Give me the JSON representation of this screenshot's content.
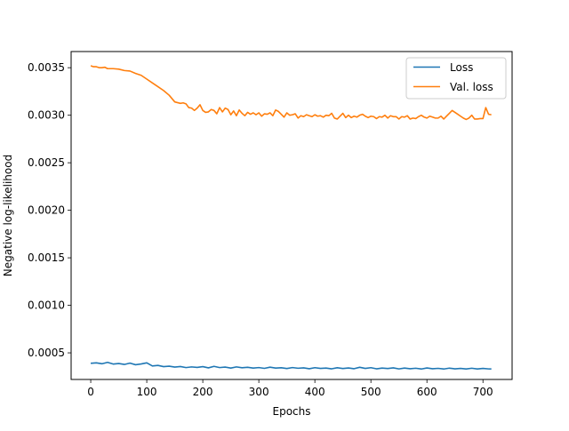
{
  "chart_data": {
    "type": "line",
    "title": "",
    "xlabel": "Epochs",
    "ylabel": "Negative log-likelihood",
    "xlim": [
      -35,
      752
    ],
    "ylim": [
      0.00022,
      0.00367
    ],
    "xticks": [
      0,
      100,
      200,
      300,
      400,
      500,
      600,
      700
    ],
    "xtick_labels": [
      "0",
      "100",
      "200",
      "300",
      "400",
      "500",
      "600",
      "700"
    ],
    "yticks": [
      0.0005,
      0.001,
      0.0015,
      0.002,
      0.0025,
      0.003,
      0.0035
    ],
    "ytick_labels": [
      "0.0005",
      "0.0010",
      "0.0015",
      "0.0020",
      "0.0025",
      "0.0030",
      "0.0035"
    ],
    "grid": false,
    "legend_position": "top-right",
    "series": [
      {
        "name": "Loss",
        "color": "#1f77b4",
        "x": [
          0,
          10,
          20,
          30,
          40,
          50,
          60,
          70,
          80,
          90,
          100,
          110,
          120,
          130,
          140,
          150,
          160,
          170,
          180,
          190,
          200,
          210,
          220,
          230,
          240,
          250,
          260,
          270,
          280,
          290,
          300,
          310,
          320,
          330,
          340,
          350,
          360,
          370,
          380,
          390,
          400,
          410,
          420,
          430,
          440,
          450,
          460,
          470,
          480,
          490,
          500,
          510,
          520,
          530,
          540,
          550,
          560,
          570,
          580,
          590,
          600,
          610,
          620,
          630,
          640,
          650,
          660,
          670,
          680,
          690,
          700,
          710,
          715
        ],
        "values": [
          0.00039,
          0.000395,
          0.000385,
          0.0004,
          0.000382,
          0.000388,
          0.000378,
          0.000392,
          0.000375,
          0.000383,
          0.000395,
          0.000362,
          0.000368,
          0.000355,
          0.00036,
          0.00035,
          0.000356,
          0.000345,
          0.000352,
          0.000347,
          0.000355,
          0.000342,
          0.000358,
          0.000345,
          0.00035,
          0.00034,
          0.000352,
          0.000343,
          0.000348,
          0.00034,
          0.000345,
          0.000337,
          0.000349,
          0.00034,
          0.000343,
          0.000335,
          0.000345,
          0.000338,
          0.000342,
          0.000333,
          0.000344,
          0.000336,
          0.00034,
          0.000332,
          0.000343,
          0.000335,
          0.000341,
          0.000333,
          0.000348,
          0.000336,
          0.000344,
          0.000332,
          0.00034,
          0.000335,
          0.000342,
          0.000331,
          0.00034,
          0.000333,
          0.000338,
          0.00033,
          0.000341,
          0.000333,
          0.000337,
          0.00033,
          0.000339,
          0.000332,
          0.000336,
          0.00033,
          0.000338,
          0.00033,
          0.000336,
          0.000331,
          0.00033
        ]
      },
      {
        "name": "Val. loss",
        "color": "#ff7f0e",
        "x": [
          0,
          5,
          10,
          15,
          20,
          25,
          30,
          40,
          50,
          60,
          70,
          80,
          90,
          100,
          110,
          120,
          130,
          140,
          150,
          160,
          165,
          170,
          175,
          180,
          185,
          190,
          195,
          200,
          205,
          210,
          215,
          220,
          225,
          230,
          235,
          240,
          245,
          250,
          255,
          260,
          265,
          270,
          275,
          280,
          285,
          290,
          295,
          300,
          305,
          310,
          315,
          320,
          325,
          330,
          335,
          340,
          345,
          350,
          355,
          360,
          365,
          370,
          375,
          380,
          385,
          390,
          395,
          400,
          405,
          410,
          415,
          420,
          425,
          430,
          435,
          440,
          445,
          450,
          455,
          460,
          465,
          470,
          475,
          480,
          485,
          490,
          495,
          500,
          505,
          510,
          515,
          520,
          525,
          530,
          535,
          540,
          545,
          550,
          555,
          560,
          565,
          570,
          575,
          580,
          585,
          590,
          595,
          600,
          605,
          610,
          615,
          620,
          625,
          630,
          635,
          640,
          645,
          650,
          655,
          660,
          665,
          670,
          675,
          680,
          685,
          690,
          695,
          700,
          705,
          710,
          715
        ],
        "values": [
          0.00352,
          0.00351,
          0.00351,
          0.0035,
          0.0035,
          0.003505,
          0.00349,
          0.00349,
          0.003485,
          0.00347,
          0.003465,
          0.00344,
          0.00342,
          0.00338,
          0.00334,
          0.0033,
          0.00326,
          0.00321,
          0.00314,
          0.003125,
          0.00313,
          0.00312,
          0.00308,
          0.003075,
          0.00305,
          0.003075,
          0.00311,
          0.00305,
          0.00303,
          0.003035,
          0.00306,
          0.00305,
          0.003015,
          0.00308,
          0.003035,
          0.003075,
          0.00306,
          0.003005,
          0.003045,
          0.002995,
          0.003055,
          0.00302,
          0.002995,
          0.00303,
          0.00301,
          0.003025,
          0.003005,
          0.003025,
          0.00299,
          0.003015,
          0.00301,
          0.003025,
          0.002995,
          0.003055,
          0.00304,
          0.00301,
          0.00298,
          0.003025,
          0.003,
          0.003005,
          0.003015,
          0.00297,
          0.002995,
          0.002985,
          0.003005,
          0.002995,
          0.002985,
          0.003005,
          0.00299,
          0.002995,
          0.00298,
          0.003,
          0.002995,
          0.00302,
          0.00297,
          0.00296,
          0.00299,
          0.00302,
          0.002975,
          0.003,
          0.002975,
          0.00299,
          0.00298,
          0.003,
          0.00301,
          0.00299,
          0.002975,
          0.00299,
          0.002985,
          0.002965,
          0.002985,
          0.00298,
          0.003,
          0.00297,
          0.002995,
          0.002985,
          0.002985,
          0.00296,
          0.002985,
          0.00298,
          0.002995,
          0.00296,
          0.00297,
          0.002965,
          0.002985,
          0.003,
          0.00298,
          0.00297,
          0.00299,
          0.00298,
          0.00297,
          0.00297,
          0.00299,
          0.00296,
          0.00299,
          0.00302,
          0.00305,
          0.00303,
          0.00301,
          0.00299,
          0.00297,
          0.002955,
          0.00297,
          0.003,
          0.00296,
          0.00296,
          0.002965,
          0.002965,
          0.00308,
          0.00301,
          0.003005
        ]
      }
    ]
  }
}
